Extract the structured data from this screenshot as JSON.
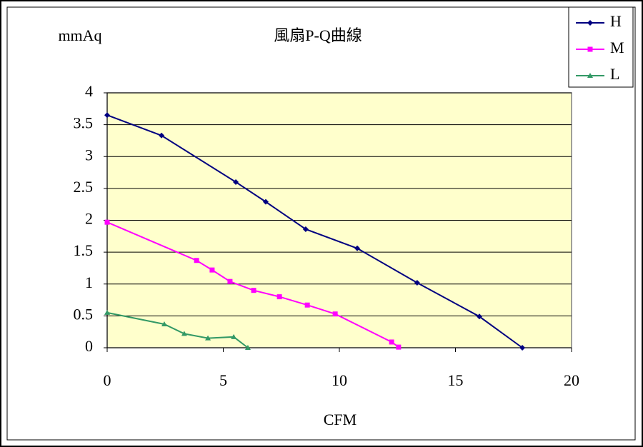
{
  "chart_data": {
    "type": "line",
    "title": "風扇P-Q曲線",
    "y_label": "mmAq",
    "x_label": "CFM",
    "xlim": [
      0,
      20
    ],
    "xticks": [
      0,
      5,
      10,
      15,
      20
    ],
    "ylim": [
      0,
      4
    ],
    "yticks": [
      0,
      0.5,
      1,
      1.5,
      2,
      2.5,
      3,
      3.5,
      4
    ],
    "grid": true,
    "legend": "top-right",
    "background": "#ffffcc",
    "series": [
      {
        "name": "H",
        "color": "#000080",
        "marker": "diamond",
        "x": [
          0,
          2.34,
          5.54,
          6.83,
          8.55,
          10.77,
          13.35,
          16.03,
          17.88
        ],
        "values": [
          3.65,
          3.33,
          2.6,
          2.29,
          1.86,
          1.56,
          1.02,
          0.49,
          0
        ]
      },
      {
        "name": "M",
        "color": "#ff00ff",
        "marker": "square",
        "x": [
          0,
          3.85,
          4.52,
          5.29,
          6.31,
          7.42,
          8.62,
          9.82,
          12.25,
          12.55
        ],
        "values": [
          1.97,
          1.37,
          1.22,
          1.04,
          0.9,
          0.8,
          0.67,
          0.53,
          0.09,
          0.01
        ]
      },
      {
        "name": "L",
        "color": "#339966",
        "marker": "triangle",
        "x": [
          0,
          2.46,
          3.32,
          4.34,
          5.45,
          6.06
        ],
        "values": [
          0.55,
          0.37,
          0.22,
          0.15,
          0.17,
          0
        ]
      }
    ]
  }
}
